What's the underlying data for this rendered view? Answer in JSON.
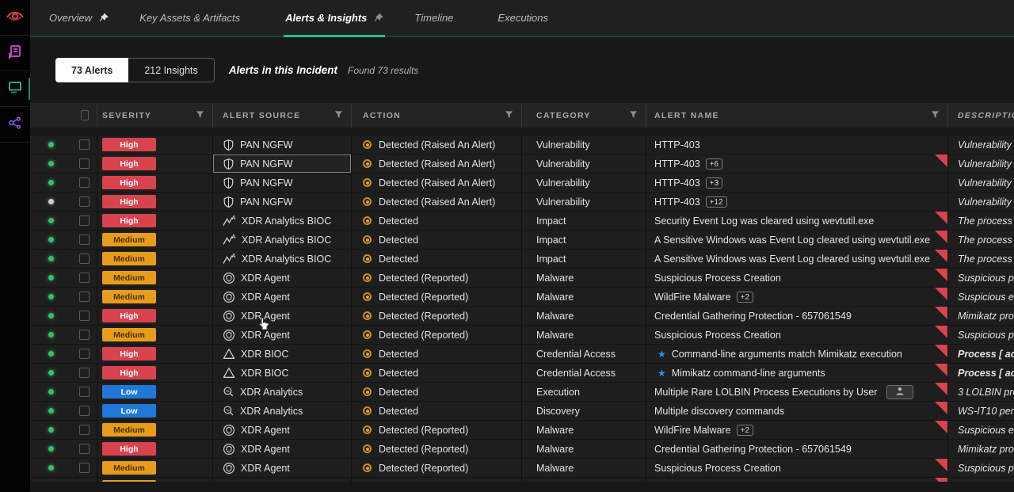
{
  "sidebar": {
    "icons": [
      {
        "name": "brand-eye-icon",
        "color": "#d8414b"
      },
      {
        "name": "reports-icon",
        "color": "#d44fd4"
      },
      {
        "name": "monitor-icon",
        "color": "#2dbd85",
        "active": true
      },
      {
        "name": "share-icon",
        "color": "#8a5cf0"
      }
    ]
  },
  "nav": {
    "tabs": [
      {
        "label": "Overview",
        "pinned": true,
        "active": false
      },
      {
        "label": "Key Assets & Artifacts",
        "pinned": false,
        "active": false
      },
      {
        "label": "Alerts & Insights",
        "pinned": true,
        "active": true
      },
      {
        "label": "Timeline",
        "pinned": false,
        "active": false
      },
      {
        "label": "Executions",
        "pinned": false,
        "active": false
      }
    ]
  },
  "toolbar": {
    "alerts_toggle": "73 Alerts",
    "insights_toggle": "212 Insights",
    "title": "Alerts in this Incident",
    "result_count": "Found 73 results"
  },
  "table": {
    "columns": [
      "SEVERITY",
      "ALERT SOURCE",
      "ACTION",
      "CATEGORY",
      "ALERT NAME",
      "DESCRIPTION"
    ],
    "filter_icon": "filter-funnel-icon",
    "rows": [
      {
        "status": "green",
        "severity": "High",
        "source": "PAN NGFW",
        "source_icon": "shield-icon",
        "action": "Detected (Raised An Alert)",
        "category": "Vulnerability",
        "alert_name": "HTTP-403",
        "name_badge": "",
        "star": false,
        "user_button": false,
        "flag": false,
        "description": "Vulnerability Exp",
        "desc_bold": false,
        "source_highlight": false
      },
      {
        "status": "green",
        "severity": "High",
        "source": "PAN NGFW",
        "source_icon": "shield-icon",
        "action": "Detected (Raised An Alert)",
        "category": "Vulnerability",
        "alert_name": "HTTP-403",
        "name_badge": "+6",
        "star": false,
        "user_button": false,
        "flag": true,
        "description": "Vulnerability Exp",
        "desc_bold": false,
        "source_highlight": true
      },
      {
        "status": "green",
        "severity": "High",
        "source": "PAN NGFW",
        "source_icon": "shield-icon",
        "action": "Detected (Raised An Alert)",
        "category": "Vulnerability",
        "alert_name": "HTTP-403",
        "name_badge": "+3",
        "star": false,
        "user_button": false,
        "flag": false,
        "description": "Vulnerability Exp",
        "desc_bold": false,
        "source_highlight": false
      },
      {
        "status": "gray",
        "severity": "High",
        "source": "PAN NGFW",
        "source_icon": "shield-icon",
        "action": "Detected (Raised An Alert)",
        "category": "Vulnerability",
        "alert_name": "HTTP-403",
        "name_badge": "+12",
        "star": false,
        "user_button": false,
        "flag": false,
        "description": "Vulnerability Exp",
        "desc_bold": false,
        "source_highlight": false
      },
      {
        "status": "green",
        "severity": "High",
        "source": "XDR Analytics BIOC",
        "source_icon": "analytics-bioc-icon",
        "action": "Detected",
        "category": "Impact",
        "alert_name": "Security Event Log was cleared using wevtutil.exe",
        "name_badge": "",
        "star": false,
        "user_button": false,
        "flag": true,
        "description": "The process cmd",
        "desc_bold": false,
        "source_highlight": false
      },
      {
        "status": "green",
        "severity": "Medium",
        "source": "XDR Analytics BIOC",
        "source_icon": "analytics-bioc-icon",
        "action": "Detected",
        "category": "Impact",
        "alert_name": "A Sensitive Windows was Event Log cleared using wevtutil.exe",
        "name_badge": "",
        "star": false,
        "user_button": false,
        "flag": true,
        "description": "The process cmd",
        "desc_bold": false,
        "source_highlight": false
      },
      {
        "status": "green",
        "severity": "Medium",
        "source": "XDR Analytics BIOC",
        "source_icon": "analytics-bioc-icon",
        "action": "Detected",
        "category": "Impact",
        "alert_name": "A Sensitive Windows was Event Log cleared using wevtutil.exe",
        "name_badge": "",
        "star": false,
        "user_button": false,
        "flag": true,
        "description": "The process cmd",
        "desc_bold": false,
        "source_highlight": false
      },
      {
        "status": "green",
        "severity": "Medium",
        "source": "XDR Agent",
        "source_icon": "agent-icon",
        "action": "Detected (Reported)",
        "category": "Malware",
        "alert_name": "Suspicious Process Creation",
        "name_badge": "",
        "star": false,
        "user_button": false,
        "flag": true,
        "description": "Suspicious proce",
        "desc_bold": false,
        "source_highlight": false
      },
      {
        "status": "green",
        "severity": "Medium",
        "source": "XDR Agent",
        "source_icon": "agent-icon",
        "action": "Detected (Reported)",
        "category": "Malware",
        "alert_name": "WildFire Malware",
        "name_badge": "+2",
        "star": false,
        "user_button": false,
        "flag": true,
        "description": "Suspicious execu",
        "desc_bold": false,
        "source_highlight": false
      },
      {
        "status": "green",
        "severity": "High",
        "source": "XDR Agent",
        "source_icon": "agent-icon",
        "action": "Detected (Reported)",
        "category": "Malware",
        "alert_name": "Credential Gathering Protection - 657061549",
        "name_badge": "",
        "star": false,
        "user_button": false,
        "flag": true,
        "description": "Mimikatz proces",
        "desc_bold": false,
        "source_highlight": false
      },
      {
        "status": "green",
        "severity": "Medium",
        "source": "XDR Agent",
        "source_icon": "agent-icon",
        "action": "Detected (Reported)",
        "category": "Malware",
        "alert_name": "Suspicious Process Creation",
        "name_badge": "",
        "star": false,
        "user_button": false,
        "flag": true,
        "description": "Suspicious proce",
        "desc_bold": false,
        "source_highlight": false
      },
      {
        "status": "green",
        "severity": "High",
        "source": "XDR BIOC",
        "source_icon": "warning-triangle-icon",
        "action": "Detected",
        "category": "Credential Access",
        "alert_name": "Command-line arguments match Mimikatz execution",
        "name_badge": "",
        "star": true,
        "user_button": false,
        "flag": true,
        "description": "Process [ action",
        "desc_bold": true,
        "source_highlight": false
      },
      {
        "status": "green",
        "severity": "High",
        "source": "XDR BIOC",
        "source_icon": "warning-triangle-icon",
        "action": "Detected",
        "category": "Credential Access",
        "alert_name": "Mimikatz command-line arguments",
        "name_badge": "",
        "star": true,
        "user_button": false,
        "flag": true,
        "description": "Process [ action",
        "desc_bold": true,
        "source_highlight": false
      },
      {
        "status": "green",
        "severity": "Low",
        "source": "XDR Analytics",
        "source_icon": "magnifier-icon",
        "action": "Detected",
        "category": "Execution",
        "alert_name": "Multiple Rare LOLBIN Process Executions by User",
        "name_badge": "",
        "star": false,
        "user_button": true,
        "flag": true,
        "description": "3 LOLBIN proces",
        "desc_bold": false,
        "source_highlight": false
      },
      {
        "status": "green",
        "severity": "Low",
        "source": "XDR Analytics",
        "source_icon": "magnifier-icon",
        "action": "Detected",
        "category": "Discovery",
        "alert_name": "Multiple discovery commands",
        "name_badge": "",
        "star": false,
        "user_button": false,
        "flag": true,
        "description": "WS-IT10 perform",
        "desc_bold": false,
        "source_highlight": false
      },
      {
        "status": "green",
        "severity": "Medium",
        "source": "XDR Agent",
        "source_icon": "agent-icon",
        "action": "Detected (Reported)",
        "category": "Malware",
        "alert_name": "WildFire Malware",
        "name_badge": "+2",
        "star": false,
        "user_button": false,
        "flag": true,
        "description": "Suspicious execu",
        "desc_bold": false,
        "source_highlight": false
      },
      {
        "status": "green",
        "severity": "High",
        "source": "XDR Agent",
        "source_icon": "agent-icon",
        "action": "Detected (Reported)",
        "category": "Malware",
        "alert_name": "Credential Gathering Protection - 657061549",
        "name_badge": "",
        "star": false,
        "user_button": false,
        "flag": false,
        "description": "Mimikatz proces",
        "desc_bold": false,
        "source_highlight": false
      },
      {
        "status": "green",
        "severity": "Medium",
        "source": "XDR Agent",
        "source_icon": "agent-icon",
        "action": "Detected (Reported)",
        "category": "Malware",
        "alert_name": "Suspicious Process Creation",
        "name_badge": "",
        "star": false,
        "user_button": false,
        "flag": true,
        "description": "Suspicious proce",
        "desc_bold": false,
        "source_highlight": false
      },
      {
        "status": "green",
        "severity": "Medium",
        "source": "XDR Agent",
        "source_icon": "agent-icon",
        "action": "Detected (Reported)",
        "category": "Malware",
        "alert_name": "Suspicious Process Creation",
        "name_badge": "",
        "star": false,
        "user_button": false,
        "flag": true,
        "description": "Suspicious proce",
        "desc_bold": false,
        "source_highlight": false
      }
    ]
  },
  "colors": {
    "accent_green": "#2ebd7f",
    "severity": {
      "High": "#d8434e",
      "Medium": "#e89c1b",
      "Low": "#2079d8"
    },
    "severity_text": {
      "High": "#ffffff",
      "Medium": "#4a3200",
      "Low": "#ffffff"
    },
    "status_green": "#35c06e",
    "status_gray": "#cfcfcf",
    "flag_red": "#d8434e",
    "star_blue": "#2f8ff0",
    "action_icon_orange": "#c8901c"
  }
}
